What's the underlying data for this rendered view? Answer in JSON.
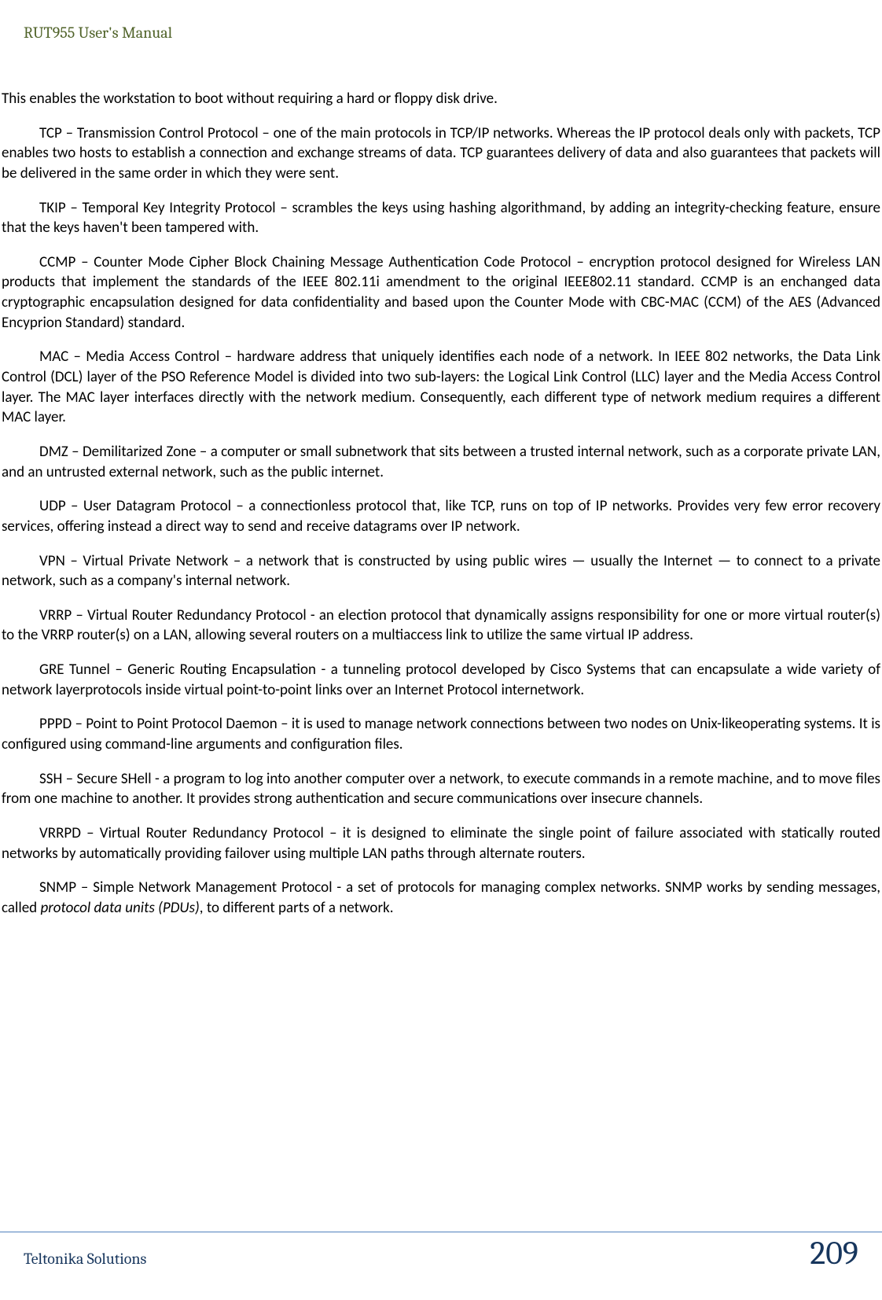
{
  "header": {
    "title": "RUT955 User's Manual"
  },
  "content": {
    "intro": "This enables the workstation to boot without requiring a hard or floppy disk drive.",
    "tcp": "TCP – Transmission Control Protocol – one of the main protocols in TCP/IP networks. Whereas the IP protocol deals only with packets, TCP enables two hosts to establish a connection and exchange streams of data. TCP guarantees delivery of data and also guarantees that packets will be delivered in the same order in which they were sent.",
    "tkip": "TKIP – Temporal Key Integrity Protocol – scrambles the keys using hashing algorithmand, by adding an integrity-checking feature, ensure that the keys haven't been tampered with.",
    "ccmp": "CCMP – Counter Mode Cipher Block Chaining Message Authentication Code Protocol – encryption protocol designed for Wireless LAN products that implement the standards of the IEEE 802.11i amendment to the original IEEE802.11 standard. CCMP is an enchanged data cryptographic encapsulation designed for data confidentiality and based upon the Counter Mode with CBC-MAC (CCM) of the AES (Advanced Encyprion Standard) standard.",
    "mac": "MAC – Media Access Control – hardware address that uniquely identifies each node of a network. In IEEE 802 networks, the Data Link  Control (DCL) layer of the PSO Reference Model is divided into two sub-layers: the Logical Link Control (LLC) layer and the Media Access Control layer. The MAC layer interfaces directly with the network medium. Consequently, each different type of network medium requires a different MAC layer.",
    "dmz": "DMZ – Demilitarized Zone – a computer or small subnetwork that sits between a trusted internal network, such as a corporate private LAN, and an untrusted external network, such as the public internet.",
    "udp": "UDP – User Datagram Protocol – a connectionless protocol that, like TCP, runs on  top of IP networks. Provides very few error recovery services, offering instead a direct way to send and receive datagrams over IP network.",
    "vpn": "VPN – Virtual Private Network – a network that is constructed by using public wires — usually the Internet — to connect to a private network, such as a company's internal network.",
    "vrrp": "VRRP – Virtual Router Redundancy Protocol - an election protocol that dynamically assigns responsibility for one or more virtual router(s) to the VRRP router(s) on a LAN, allowing several routers on a multiaccess link to utilize the same virtual IP address.",
    "gre": "GRE Tunnel – Generic Routing Encapsulation - a tunneling protocol developed by Cisco Systems that can encapsulate a wide variety of network layerprotocols inside virtual point-to-point links over an Internet Protocol internetwork.",
    "pppd": "PPPD – Point to Point Protocol Daemon – it is used to manage network connections between two nodes on Unix-likeoperating systems. It is configured using command-line arguments and configuration files.",
    "ssh": "SSH – Secure SHell - a program to log into another computer over a network, to execute commands in a remote machine, and to move files from one machine to another. It provides strong authentication and secure communications over insecure channels.",
    "vrrpd": "VRRPD – Virtual Router Redundancy Protocol – it is designed to eliminate the single point of failure associated with statically routed networks by automatically providing failover using multiple LAN paths through alternate routers.",
    "snmp_prefix": "SNMP –  Simple Network Management Protocol - a set of protocols for managing complex networks. SNMP works by sending messages, called ",
    "snmp_em": "protocol data units (PDUs)",
    "snmp_suffix": ", to different parts of a network."
  },
  "footer": {
    "left": "Teltonika Solutions",
    "page": "209"
  }
}
